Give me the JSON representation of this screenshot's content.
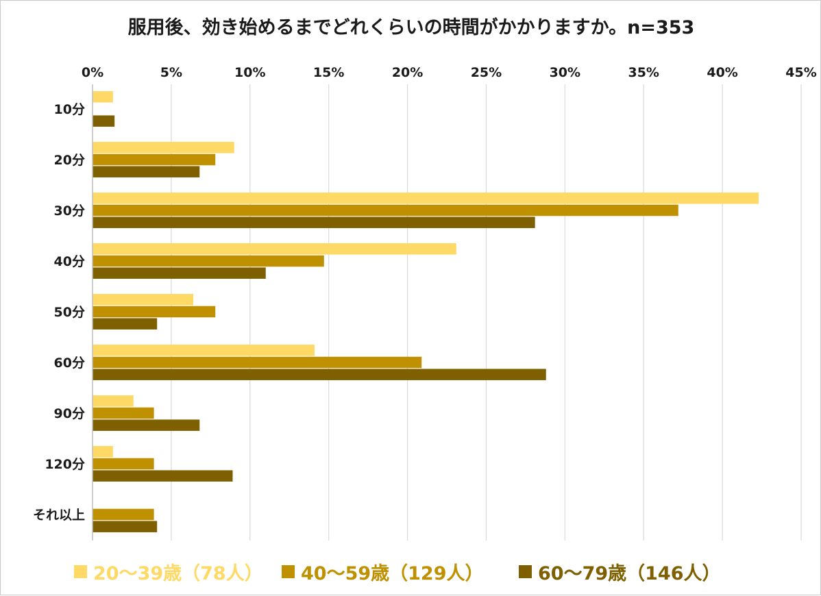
{
  "chart_data": {
    "type": "bar",
    "orientation": "horizontal",
    "title": "服用後、効き始めるまでどれくらいの時間がかかりますか。n=353",
    "categories": [
      "10分",
      "20分",
      "30分",
      "40分",
      "50分",
      "60分",
      "90分",
      "120分",
      "それ以上"
    ],
    "x_ticks": [
      "0%",
      "5%",
      "10%",
      "15%",
      "20%",
      "25%",
      "30%",
      "35%",
      "40%",
      "45%"
    ],
    "xlim": [
      0,
      45
    ],
    "grid": true,
    "legend_position": "bottom",
    "series": [
      {
        "name": "20～39歳（78人）",
        "color": "#FFD966",
        "values": [
          1.3,
          9.0,
          42.3,
          23.1,
          6.4,
          14.1,
          2.6,
          1.3,
          0
        ]
      },
      {
        "name": "40～59歳（129人）",
        "color": "#BF9000",
        "values": [
          0,
          7.8,
          37.2,
          14.7,
          7.8,
          20.9,
          3.9,
          3.9,
          3.9
        ]
      },
      {
        "name": "60～79歳（146人）",
        "color": "#7F6000",
        "values": [
          1.4,
          6.8,
          28.1,
          11.0,
          4.1,
          28.8,
          6.8,
          8.9,
          4.1
        ]
      }
    ]
  }
}
